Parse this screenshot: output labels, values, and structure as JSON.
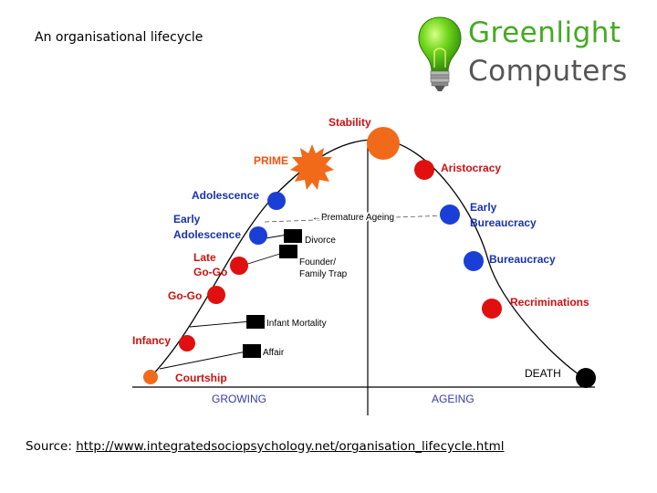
{
  "slide": {
    "title": "An organisational lifecycle"
  },
  "logo": {
    "line1": "Greenlight",
    "line2": "Computers",
    "colors": {
      "primary": "#44aa22",
      "secondary": "#555555"
    }
  },
  "diagram": {
    "axis_labels": {
      "growing": "GROWING",
      "ageing": "AGEING"
    },
    "colors": {
      "red": "#e01010",
      "blue": "#1a3fd6",
      "orange": "#f06a1a",
      "black": "#000000",
      "label_red": "#cc1111",
      "label_blue": "#1a33aa"
    },
    "stages": [
      {
        "id": "courtship",
        "label": "Courtship",
        "color": "orange"
      },
      {
        "id": "infancy",
        "label": "Infancy",
        "color": "red"
      },
      {
        "id": "go-go",
        "label": "Go-Go",
        "color": "red"
      },
      {
        "id": "late-go-go",
        "label": "Late\nGo-Go",
        "color": "red"
      },
      {
        "id": "early-adolescence",
        "label": "Early\nAdolescence",
        "color": "blue"
      },
      {
        "id": "adolescence",
        "label": "Adolescence",
        "color": "blue"
      },
      {
        "id": "prime",
        "label": "PRIME",
        "color": "orange"
      },
      {
        "id": "stability",
        "label": "Stability",
        "color": "orange"
      },
      {
        "id": "aristocracy",
        "label": "Aristocracy",
        "color": "red"
      },
      {
        "id": "early-bureaucracy",
        "label": "Early\nBureaucracy",
        "color": "blue"
      },
      {
        "id": "bureaucracy",
        "label": "Bureaucracy",
        "color": "blue"
      },
      {
        "id": "recriminations",
        "label": "Recriminations",
        "color": "red"
      },
      {
        "id": "death",
        "label": "DEATH",
        "color": "black"
      }
    ],
    "traps": [
      {
        "id": "affair",
        "label": "Affair"
      },
      {
        "id": "infant-mortality",
        "label": "Infant Mortality"
      },
      {
        "id": "founder-family-trap",
        "label": "Founder/\nFamily Trap"
      },
      {
        "id": "divorce",
        "label": "Divorce"
      }
    ],
    "premature_ageing_label": "Premature Ageing"
  },
  "source": {
    "prefix": "Source: ",
    "url_text": "http://www.integratedsociopsychology.net/organisation_lifecycle.html"
  }
}
